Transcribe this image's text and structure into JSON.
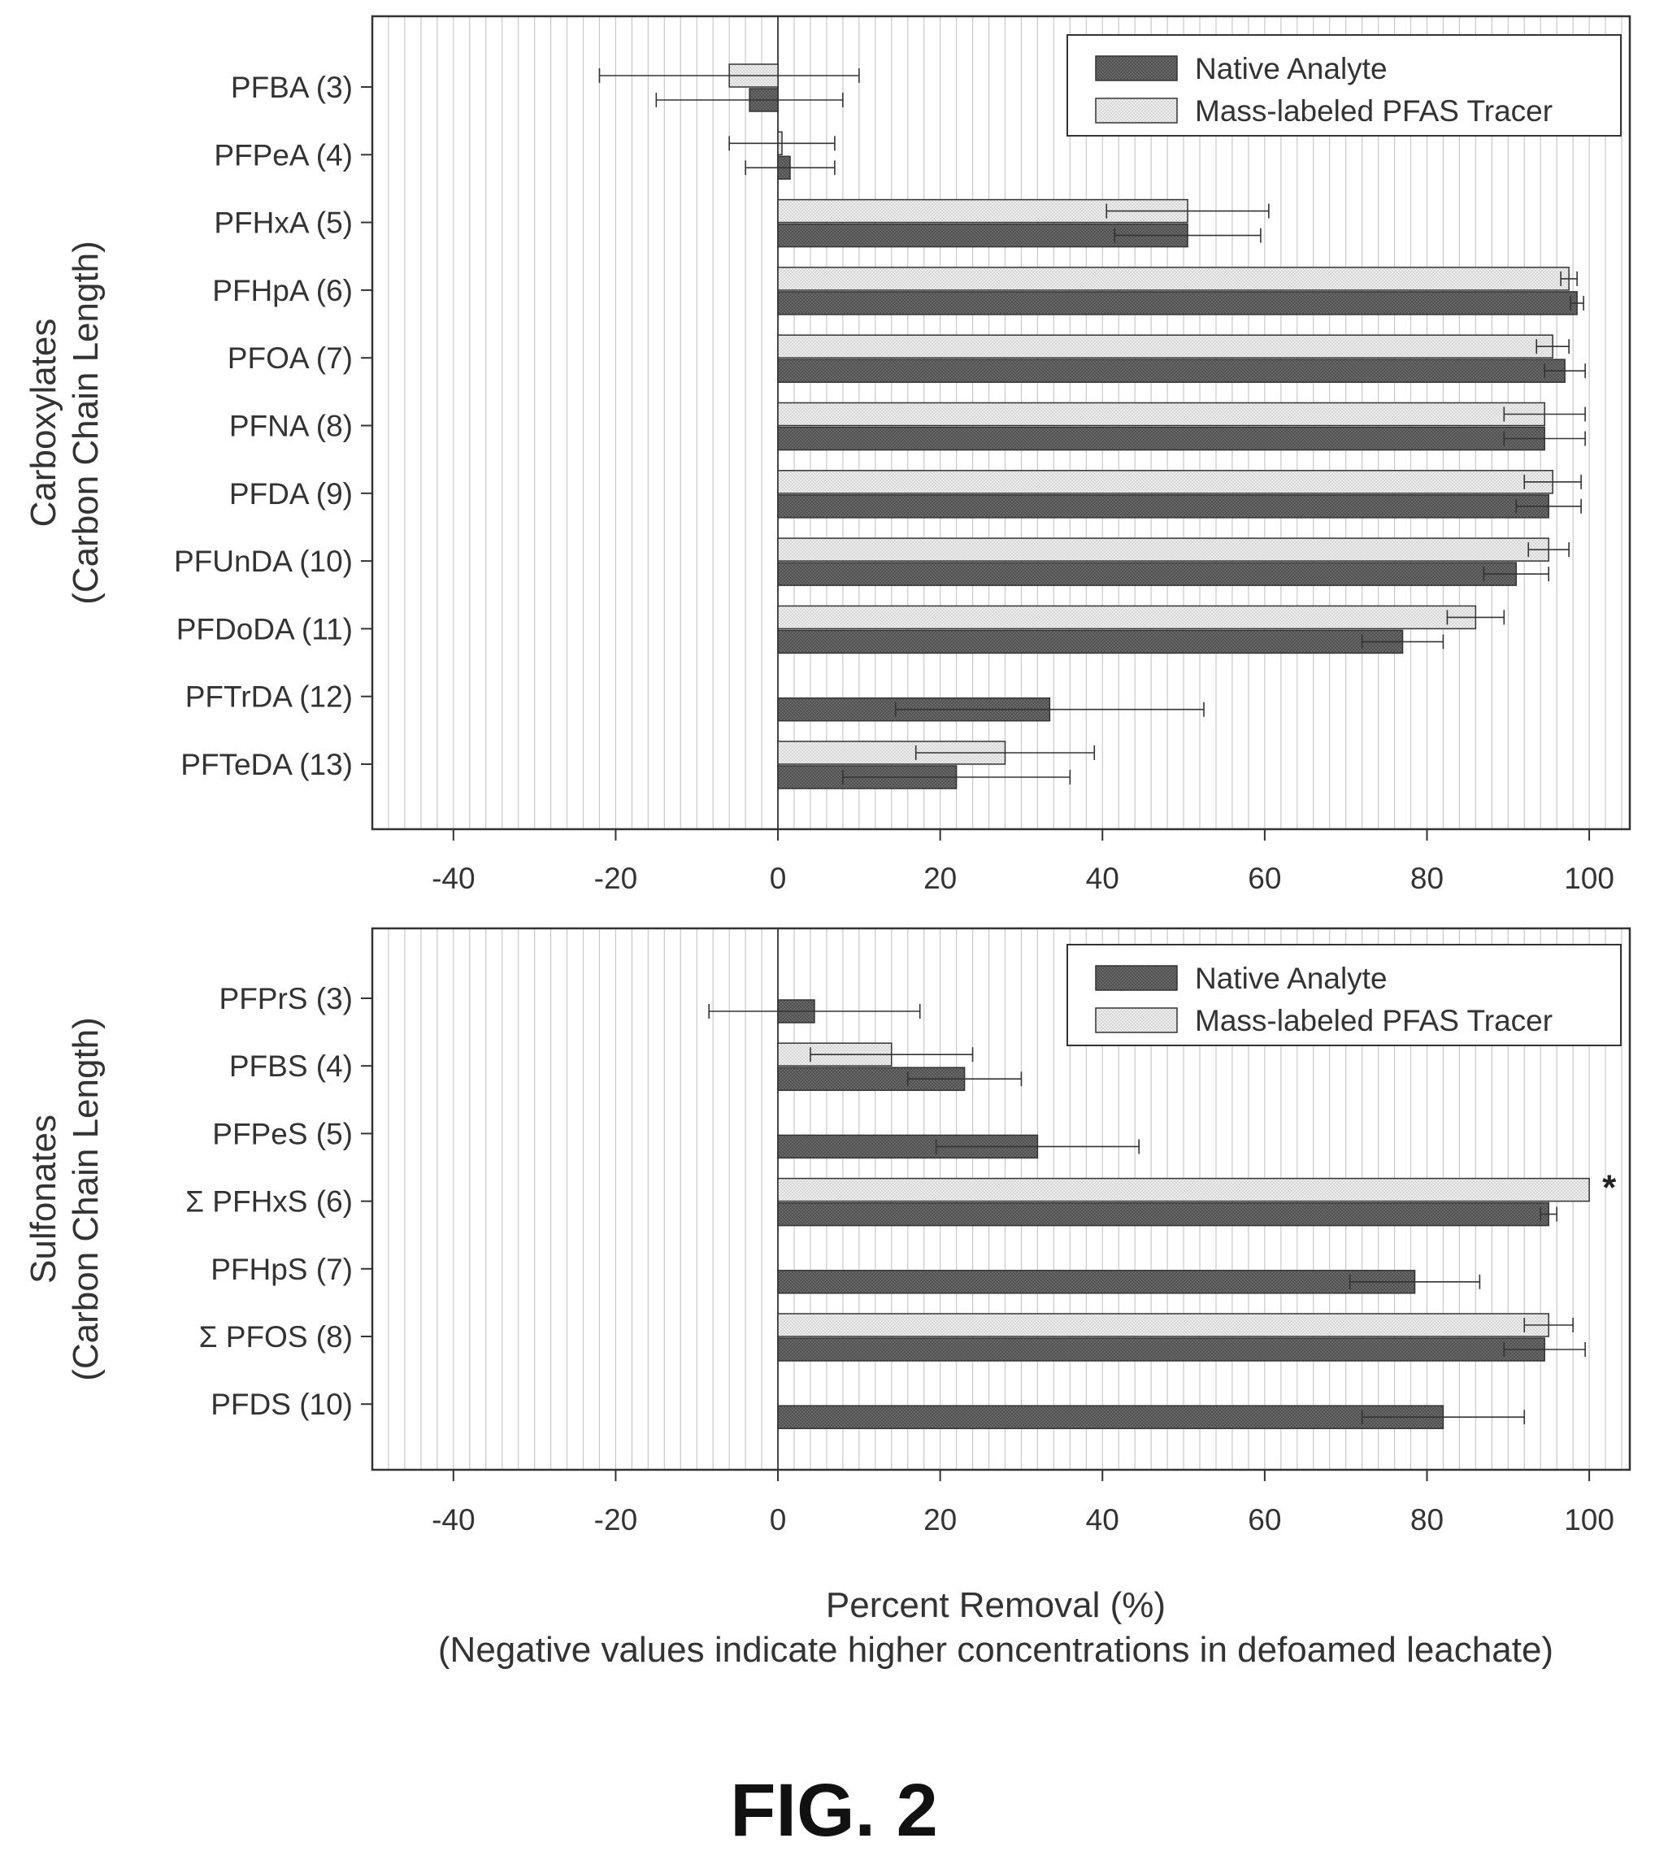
{
  "figure": {
    "caption": "FIG. 2",
    "xlabel": "Percent Removal (%)",
    "xlabel_note": "(Negative values indicate higher concentrations in defoamed leachate)"
  },
  "legend": {
    "native": "Native Analyte",
    "tracer": "Mass-labeled PFAS Tracer"
  },
  "colors": {
    "native": "#555555",
    "tracer": "#e6e6e6",
    "grid": "#c8c8c8",
    "frame": "#333333"
  },
  "chart_data": [
    {
      "type": "bar",
      "orientation": "horizontal",
      "ylabel": "Carboxylates",
      "ylabel_sub": "(Carbon Chain Length)",
      "xlim": [
        -50,
        105
      ],
      "xticks": [
        -40,
        -20,
        0,
        20,
        40,
        60,
        80,
        100
      ],
      "grid": "vertical minor lines every 2%",
      "legend_position": "top-right",
      "categories": [
        "PFBA (3)",
        "PFPeA (4)",
        "PFHxA (5)",
        "PFHpA (6)",
        "PFOA (7)",
        "PFNA (8)",
        "PFDA (9)",
        "PFUnDA (10)",
        "PFDoDA (11)",
        "PFTrDA (12)",
        "PFTeDA (13)"
      ],
      "series": [
        {
          "name": "Native Analyte",
          "values": [
            -3.5,
            1.5,
            50.5,
            98.5,
            97,
            94.5,
            95,
            91,
            77,
            33.5,
            22
          ],
          "errors": [
            11.5,
            5.5,
            9,
            0.8,
            2.5,
            5,
            4,
            4,
            5,
            19,
            14
          ]
        },
        {
          "name": "Mass-labeled PFAS Tracer",
          "values": [
            -6,
            0.5,
            50.5,
            97.5,
            95.5,
            94.5,
            95.5,
            95,
            86,
            null,
            28
          ],
          "errors": [
            16,
            6.5,
            10,
            1,
            2,
            5,
            3.5,
            2.5,
            3.5,
            null,
            11
          ]
        }
      ]
    },
    {
      "type": "bar",
      "orientation": "horizontal",
      "ylabel": "Sulfonates",
      "ylabel_sub": "(Carbon Chain Length)",
      "xlim": [
        -50,
        105
      ],
      "xticks": [
        -40,
        -20,
        0,
        20,
        40,
        60,
        80,
        100
      ],
      "grid": "vertical minor lines every 2%",
      "legend_position": "top-right",
      "categories": [
        "PFPrS (3)",
        "PFBS (4)",
        "PFPeS (5)",
        "Σ PFHxS (6)",
        "PFHpS (7)",
        "Σ PFOS (8)",
        "PFDS (10)"
      ],
      "annotations": [
        {
          "category": "Σ PFHxS (6)",
          "text": "*"
        }
      ],
      "series": [
        {
          "name": "Native Analyte",
          "values": [
            4.5,
            23,
            32,
            95,
            78.5,
            94.5,
            82
          ],
          "errors": [
            13,
            7,
            12.5,
            1,
            8,
            5,
            10
          ]
        },
        {
          "name": "Mass-labeled PFAS Tracer",
          "values": [
            null,
            14,
            null,
            100,
            null,
            95,
            null
          ],
          "errors": [
            null,
            10,
            null,
            null,
            null,
            3,
            null
          ]
        }
      ]
    }
  ]
}
